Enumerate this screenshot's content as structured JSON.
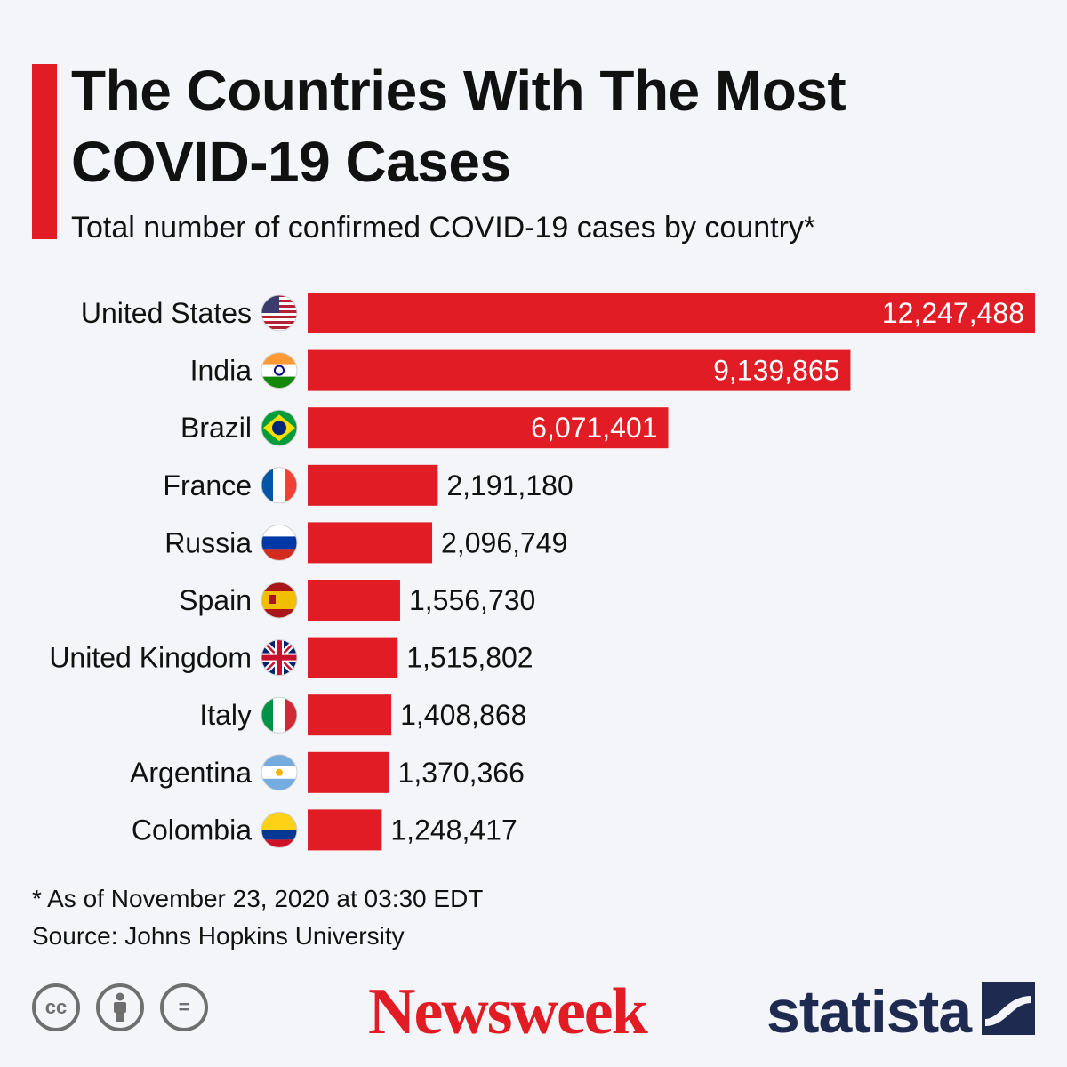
{
  "header": {
    "title_line1": "The Countries With The Most",
    "title_line2": "COVID-19 Cases",
    "subtitle": "Total number of confirmed COVID-19 cases by country*"
  },
  "chart_data": {
    "type": "bar",
    "orientation": "horizontal",
    "title": "The Countries With The Most COVID-19 Cases",
    "subtitle": "Total number of confirmed COVID-19 cases by country*",
    "categories": [
      "United States",
      "India",
      "Brazil",
      "France",
      "Russia",
      "Spain",
      "United Kingdom",
      "Italy",
      "Argentina",
      "Colombia"
    ],
    "values": [
      12247488,
      9139865,
      6071401,
      2191180,
      2096749,
      1556730,
      1515802,
      1408868,
      1370366,
      1248417
    ],
    "value_labels": [
      "12,247,488",
      "9,139,865",
      "6,071,401",
      "2,191,180",
      "2,096,749",
      "1,556,730",
      "1,515,802",
      "1,408,868",
      "1,370,366",
      "1,248,417"
    ],
    "flag_icons": [
      "us-flag-icon",
      "india-flag-icon",
      "brazil-flag-icon",
      "france-flag-icon",
      "russia-flag-icon",
      "spain-flag-icon",
      "uk-flag-icon",
      "italy-flag-icon",
      "argentina-flag-icon",
      "colombia-flag-icon"
    ],
    "xlim": [
      0,
      12247488
    ],
    "grid": false,
    "legend": "none",
    "bar_color": "#e21c24"
  },
  "footer": {
    "note": "* As of November 23, 2020 at 03:30 EDT",
    "source": "Source: Johns Hopkins University",
    "license_icons": [
      "creative-commons-icon",
      "attribution-icon",
      "no-derivatives-icon"
    ],
    "cc_text": "cc",
    "nd_text": "=",
    "brand_newsweek": "Newsweek",
    "brand_statista": "statista"
  },
  "colors": {
    "accent": "#e21c24",
    "background": "#f3f5f9",
    "statista_navy": "#1e2a4f"
  }
}
